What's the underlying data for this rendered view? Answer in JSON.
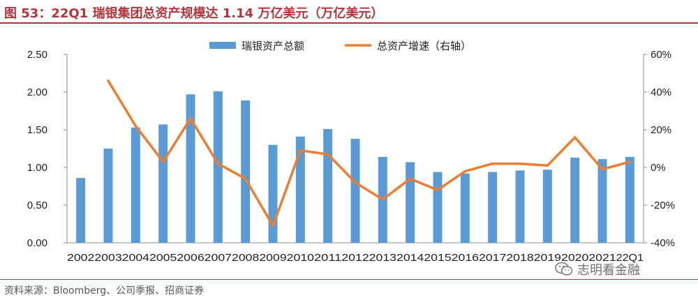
{
  "title": "图 53：22Q1 瑞银集团总资产规模达 1.14 万亿美元（万亿美元）",
  "source": "资料来源：Bloomberg、公司季报、招商证券",
  "watermark": {
    "text": "志明看金融",
    "icon": "wechat-icon"
  },
  "colors": {
    "bar": "#5b9bd5",
    "line": "#ed7d31",
    "title": "#b5333b"
  },
  "chart_data": {
    "type": "bar+line",
    "categories": [
      "2002",
      "2003",
      "2004",
      "2005",
      "2006",
      "2007",
      "2008",
      "2009",
      "2010",
      "2011",
      "2012",
      "2013",
      "2014",
      "2015",
      "2016",
      "2017",
      "2018",
      "2019",
      "2020",
      "2021",
      "22Q1"
    ],
    "series": [
      {
        "name": "瑞银资产总额",
        "type": "bar",
        "axis": "left",
        "values": [
          0.86,
          1.25,
          1.53,
          1.57,
          1.97,
          2.01,
          1.89,
          1.3,
          1.41,
          1.51,
          1.38,
          1.14,
          1.07,
          0.94,
          0.92,
          0.94,
          0.96,
          0.97,
          1.13,
          1.11,
          1.14
        ]
      },
      {
        "name": "总资产增速（右轴）",
        "type": "line",
        "axis": "right",
        "values": [
          null,
          46,
          22,
          3,
          26,
          2,
          -6,
          -31,
          9,
          7,
          -8,
          -17,
          -6,
          -12,
          -2,
          2,
          2,
          1,
          16,
          -1,
          3
        ]
      }
    ],
    "y_left": {
      "min": 0,
      "max": 2.5,
      "ticks": [
        "0.00",
        "0.50",
        "1.00",
        "1.50",
        "2.00",
        "2.50"
      ]
    },
    "y_right": {
      "min": -40,
      "max": 60,
      "ticks": [
        "-40%",
        "-20%",
        "0%",
        "20%",
        "40%",
        "60%"
      ]
    },
    "legend_position": "top",
    "grid": false
  }
}
